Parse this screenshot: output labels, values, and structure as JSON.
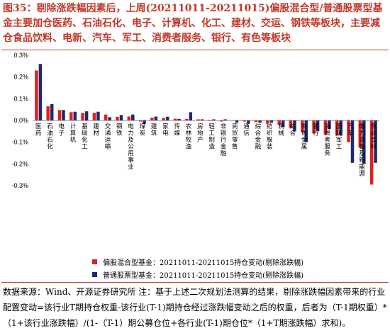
{
  "title": "图35：剔除涨跌幅因素后，上周(20211011-20211015)偏股混合型/普通股票型基金主要加仓医药、石油石化、电子、计算机、化工、建材、交运、钢铁等板块，主要减仓食品饮料、电新、汽车、军工、消费者服务、银行、有色等板块",
  "source": "数据来源：Wind、开源证券研究所  注：基于上述二次规划法测算的结果，剔除涨跌幅因素带来的行业配置变动=该行业T期持仓权重-该行业(T-1)期持仓经过涨跌幅变动之后的权重，后者为（T-1期权重）*（1+该行业涨跌幅）/(1-（T-1）期公募仓位+各行业(T-1)期仓位*（1+T期涨跌幅）求和)。",
  "colors": {
    "series1": "#e02020",
    "series2": "#1f2a6e",
    "accent": "#c0392b"
  },
  "chart_data": {
    "type": "bar",
    "ylim": [
      -0.3,
      0.3
    ],
    "yticks": [
      "0.3%",
      "0.2%",
      "0.1%",
      "0.0%",
      "-0.1%",
      "-0.2%",
      "-0.3%"
    ],
    "ytick_values": [
      0.3,
      0.2,
      0.1,
      0.0,
      -0.1,
      -0.2,
      -0.3
    ],
    "categories": [
      "医药",
      "石油石化",
      "电子",
      "计算机",
      "基础化工",
      "建材",
      "交通运输",
      "钢铁",
      "电力及公用事业",
      "煤炭",
      "建筑",
      "家电",
      "传媒",
      "农林牧渔",
      "房地产",
      "轻工制造",
      "非银行金融",
      "商贸零售",
      "通信",
      "综合金融",
      "纺织服装",
      "机械",
      "综合",
      "有色金属",
      "银行",
      "消费者服务",
      "国防军工",
      "汽车",
      "电力设备及新能源",
      "食品饮料"
    ],
    "series": [
      {
        "name": "偏股混合型基金：20211011-20211015持仓变动(剔除涨跌幅)",
        "values": [
          0.23,
          0.065,
          0.048,
          0.038,
          0.035,
          0.035,
          0.027,
          0.017,
          0.018,
          -0.005,
          0.013,
          0.012,
          0.008,
          0.007,
          0.005,
          0.003,
          -0.005,
          0.0,
          -0.005,
          -0.008,
          -0.015,
          -0.02,
          -0.035,
          -0.055,
          -0.06,
          -0.065,
          -0.07,
          -0.1,
          -0.125,
          -0.295
        ]
      },
      {
        "name": "普通股票型基金：20211011-20211015持仓变动(剔除涨跌幅)",
        "values": [
          0.26,
          0.075,
          0.048,
          0.04,
          0.042,
          0.04,
          0.015,
          0.025,
          0.027,
          -0.015,
          0.018,
          0.017,
          0.007,
          0.038,
          0.005,
          0.005,
          0.005,
          -0.01,
          -0.015,
          -0.01,
          -0.01,
          -0.03,
          -0.05,
          -0.1,
          -0.05,
          -0.04,
          -0.07,
          -0.195,
          -0.2,
          -0.195
        ]
      }
    ]
  }
}
